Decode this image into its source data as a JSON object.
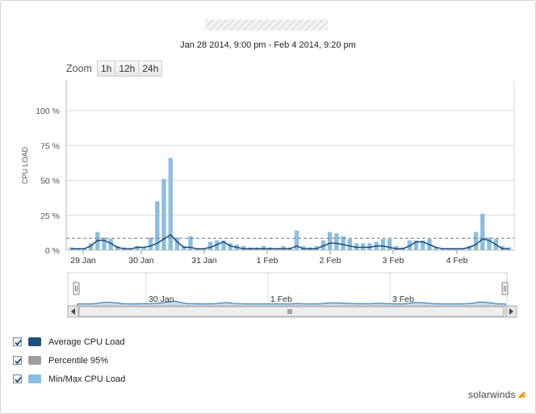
{
  "header": {
    "subtitle": "Jan 28 2014, 9:00 pm - Feb 4 2014, 9:20 pm"
  },
  "zoom": {
    "label": "Zoom",
    "buttons": [
      "1h",
      "12h",
      "24h"
    ]
  },
  "chart_data": {
    "type": "bar",
    "ylabel": "CPU LOAD",
    "ylim": [
      0,
      100
    ],
    "yticks": [
      "0 %",
      "25 %",
      "50 %",
      "75 %",
      "100 %"
    ],
    "xticks": [
      "29 Jan",
      "30 Jan",
      "31 Jan",
      "1 Feb",
      "2 Feb",
      "3 Feb",
      "4 Feb"
    ],
    "xstart": "Jan 28 2014, 9:00 pm",
    "xend": "Feb 4 2014, 9:20 pm",
    "percentile_95": 8.5,
    "series": [
      {
        "name": "Min/Max CPU Load",
        "color": "#8bbde2",
        "values": [
          2,
          1,
          1,
          5,
          13,
          9,
          8,
          3,
          2,
          1,
          3,
          2,
          9,
          35,
          51,
          66,
          9,
          3,
          10,
          1,
          1,
          6,
          7,
          7,
          5,
          4,
          3,
          2,
          2,
          3,
          2,
          1,
          3,
          2,
          14,
          3,
          2,
          3,
          7,
          13,
          12,
          10,
          8,
          5,
          5,
          5,
          6,
          8,
          8,
          3,
          2,
          7,
          7,
          7,
          8,
          2,
          1,
          1,
          1,
          1,
          3,
          13,
          26,
          9,
          8,
          3,
          2
        ]
      },
      {
        "name": "Average CPU Load",
        "color": "#1a4a7a",
        "values": [
          1,
          1,
          1,
          3,
          7,
          7,
          5,
          2,
          1,
          1,
          2,
          2,
          3,
          5,
          8,
          11,
          6,
          2,
          2,
          1,
          1,
          2,
          4,
          6,
          3,
          2,
          1,
          1,
          1,
          1,
          1,
          1,
          1,
          1,
          3,
          1,
          1,
          1,
          3,
          5,
          5,
          4,
          3,
          2,
          2,
          2,
          3,
          3,
          2,
          1,
          1,
          3,
          6,
          6,
          4,
          2,
          1,
          1,
          1,
          1,
          2,
          4,
          8,
          7,
          4,
          1,
          1
        ]
      }
    ],
    "navigator": {
      "labels": [
        "30 Jan",
        "1 Feb",
        "3 Feb"
      ]
    }
  },
  "legend": {
    "items": [
      {
        "label": "Average CPU Load",
        "color": "#1d4f7c"
      },
      {
        "label": "Percentile 95%",
        "color": "#9e9e9e"
      },
      {
        "label": "Min/Max CPU Load",
        "color": "#8bbde2"
      }
    ]
  },
  "footer": {
    "brand": "solarwinds"
  }
}
